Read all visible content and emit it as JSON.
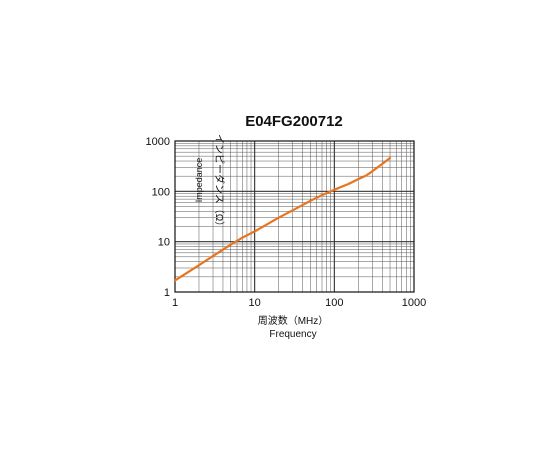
{
  "chart_data": {
    "type": "line",
    "title": "E04FG200712",
    "xlabel": "周波数（MHz）",
    "xlabel_en": "Frequency",
    "ylabel": "インピーダンス（Ω）",
    "ylabel_en": "Impedance",
    "xscale": "log",
    "yscale": "log",
    "xlim": [
      1,
      1000
    ],
    "ylim": [
      1,
      1000
    ],
    "grid": true,
    "x_ticks": [
      "1",
      "10",
      "100",
      "1000"
    ],
    "y_ticks": [
      "1",
      "10",
      "100",
      "1000"
    ],
    "series": [
      {
        "color": "#E8741E",
        "x": [
          1,
          2,
          3,
          5,
          7,
          10,
          20,
          30,
          50,
          70,
          100,
          150,
          200,
          250,
          300,
          400,
          500
        ],
        "y": [
          1.7,
          3.4,
          5.2,
          8.7,
          12,
          16,
          30,
          42,
          65,
          84,
          108,
          140,
          175,
          205,
          250,
          350,
          460
        ]
      }
    ]
  }
}
